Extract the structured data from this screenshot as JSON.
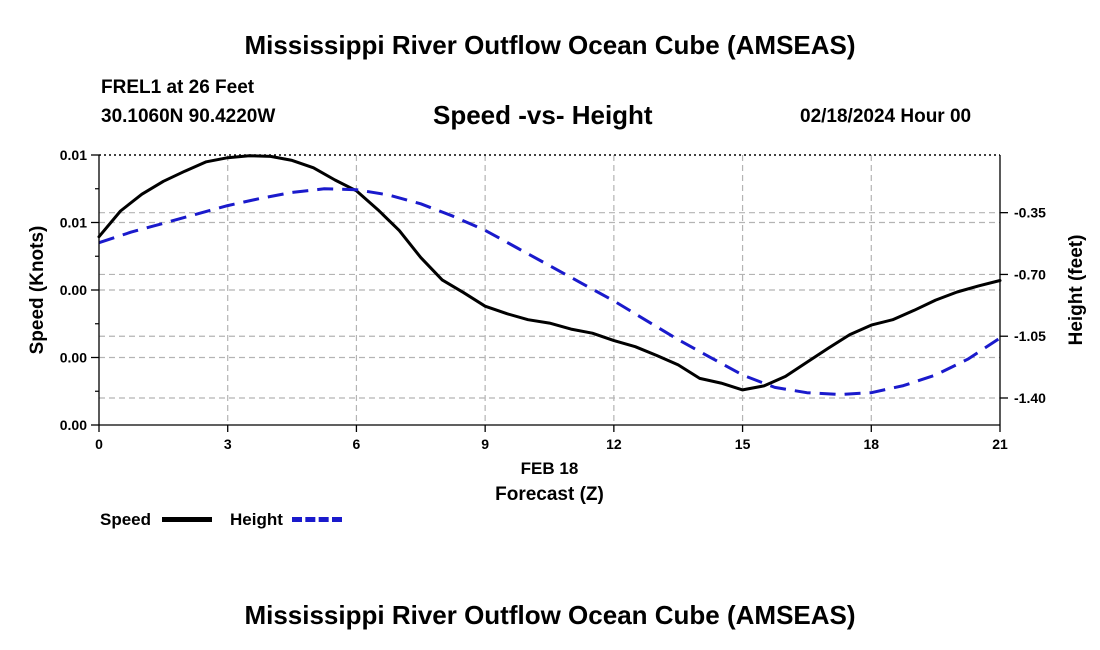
{
  "page": {
    "top_title": "Mississippi River Outflow Ocean Cube (AMSEAS)",
    "bottom_title": "Mississippi River Outflow Ocean Cube (AMSEAS)",
    "station": "FREL1 at 26 Feet",
    "location": "30.1060N  90.4220W",
    "datetime": "02/18/2024 Hour 00"
  },
  "legend": {
    "speed_label": "Speed",
    "height_label": "Height"
  },
  "colors": {
    "speed": "#000000",
    "height": "#1a1acc",
    "grid": "#b4b4b4"
  },
  "chart_data": {
    "type": "line",
    "title": "Speed -vs- Height",
    "xlabel": "Forecast (Z)",
    "date_label": "FEB 18",
    "ylabel_left": "Speed (Knots)",
    "ylabel_right": "Height (feet)",
    "xlim": [
      0,
      21
    ],
    "x_ticks": [
      0,
      3,
      6,
      9,
      12,
      15,
      18,
      21
    ],
    "x_tick_labels": [
      "0",
      "3",
      "6",
      "9",
      "12",
      "15",
      "18",
      "21"
    ],
    "left_axis": {
      "ylim": [
        0,
        4
      ],
      "ticks": [
        0,
        1,
        2,
        3,
        4
      ],
      "tick_labels": [
        "0.00",
        "0.00",
        "0.00",
        "0.01",
        "0.01"
      ],
      "minor_ticks": [
        0.5,
        1.5,
        2.5,
        3.5
      ]
    },
    "right_axis": {
      "ylim": [
        -1.553,
        -0.0233
      ],
      "ticks": [
        -0.35,
        -0.7,
        -1.05,
        -1.4
      ],
      "tick_labels": [
        "-0.35",
        "-0.70",
        "-1.05",
        "-1.40"
      ]
    },
    "grid": true,
    "series": [
      {
        "name": "Speed",
        "axis": "left",
        "style": "solid",
        "x": [
          0,
          0.5,
          1,
          1.5,
          2,
          2.5,
          3,
          3.5,
          4,
          4.5,
          5,
          5.5,
          6,
          6.5,
          7,
          7.5,
          8,
          8.5,
          9,
          9.5,
          10,
          10.5,
          11,
          11.5,
          12,
          12.5,
          13,
          13.5,
          14,
          14.5,
          15,
          15.5,
          16,
          16.5,
          17,
          17.5,
          18,
          18.5,
          19,
          19.5,
          20,
          20.5,
          21
        ],
        "values": [
          2.79,
          3.17,
          3.42,
          3.61,
          3.76,
          3.9,
          3.96,
          3.99,
          3.98,
          3.92,
          3.81,
          3.63,
          3.47,
          3.19,
          2.88,
          2.48,
          2.15,
          1.96,
          1.76,
          1.65,
          1.56,
          1.51,
          1.42,
          1.36,
          1.25,
          1.16,
          1.03,
          0.89,
          0.69,
          0.62,
          0.52,
          0.58,
          0.72,
          0.93,
          1.14,
          1.34,
          1.48,
          1.56,
          1.7,
          1.85,
          1.97,
          2.06,
          2.14
        ]
      },
      {
        "name": "Height",
        "axis": "right",
        "style": "dashed",
        "x": [
          0,
          0.75,
          1.5,
          2.25,
          3,
          3.75,
          4.5,
          5.25,
          6,
          6.75,
          7.5,
          8.25,
          9,
          9.75,
          10.5,
          11.25,
          12,
          12.75,
          13.5,
          14.25,
          15,
          15.75,
          16.5,
          17.25,
          18,
          18.75,
          19.5,
          20.25,
          21
        ],
        "values": [
          -0.52,
          -0.46,
          -0.41,
          -0.36,
          -0.31,
          -0.27,
          -0.235,
          -0.215,
          -0.22,
          -0.25,
          -0.3,
          -0.37,
          -0.45,
          -0.55,
          -0.65,
          -0.75,
          -0.85,
          -0.96,
          -1.07,
          -1.17,
          -1.27,
          -1.34,
          -1.37,
          -1.38,
          -1.37,
          -1.33,
          -1.27,
          -1.18,
          -1.06
        ]
      }
    ]
  }
}
